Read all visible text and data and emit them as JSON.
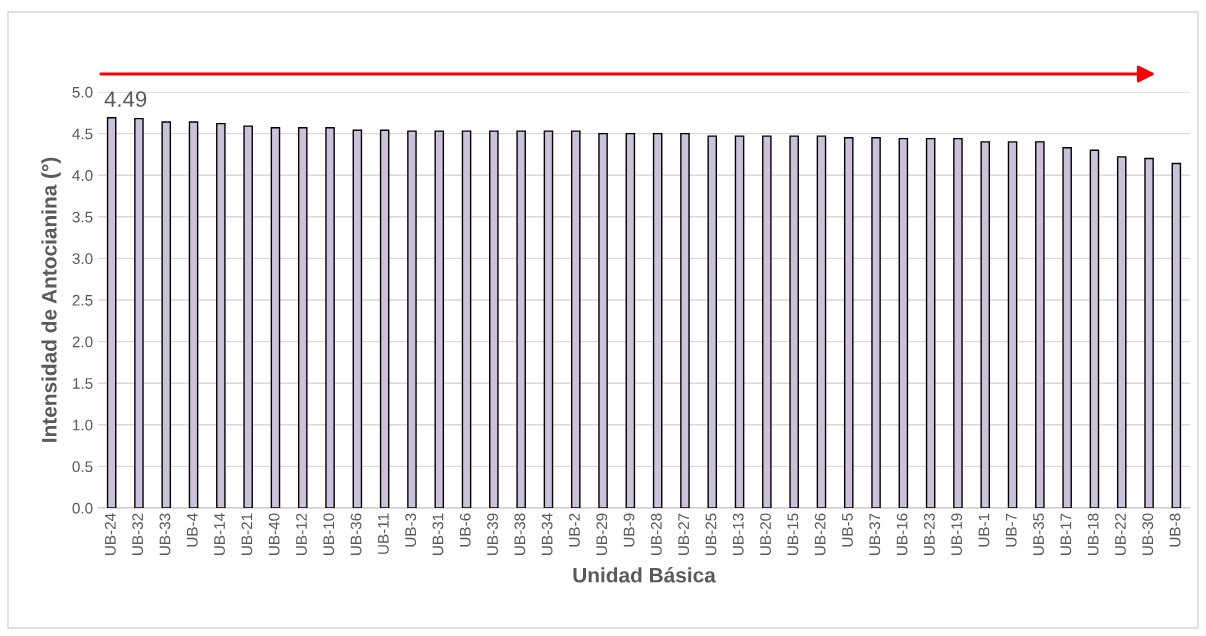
{
  "chart_data": {
    "type": "bar",
    "xlabel": "Unidad Básica",
    "ylabel": "Intensidad de Antocianina (°)",
    "categories": [
      "UB-24",
      "UB-32",
      "UB-33",
      "UB-4",
      "UB-14",
      "UB-21",
      "UB-40",
      "UB-12",
      "UB-10",
      "UB-36",
      "UB-11",
      "UB-3",
      "UB-31",
      "UB-6",
      "UB-39",
      "UB-38",
      "UB-34",
      "UB-2",
      "UB-29",
      "UB-9",
      "UB-28",
      "UB-27",
      "UB-25",
      "UB-13",
      "UB-20",
      "UB-15",
      "UB-26",
      "UB-5",
      "UB-37",
      "UB-16",
      "UB-23",
      "UB-19",
      "UB-1",
      "UB-7",
      "UB-35",
      "UB-17",
      "UB-18",
      "UB-22",
      "UB-30",
      "UB-8"
    ],
    "series": [
      {
        "color": "#ccc1da",
        "values": [
          4.69,
          4.68,
          4.64,
          4.64,
          4.62,
          4.59,
          4.57,
          4.57,
          4.57,
          4.54,
          4.54,
          4.53,
          4.53,
          4.53,
          4.53,
          4.53,
          4.53,
          4.53,
          4.5,
          4.5,
          4.5,
          4.5,
          4.47,
          4.47,
          4.47,
          4.47,
          4.47,
          4.45,
          4.45,
          4.44,
          4.44,
          4.44,
          4.4,
          4.4,
          4.4,
          4.33,
          4.3,
          4.22,
          4.2,
          4.14
        ]
      }
    ],
    "ylim": [
      0,
      5
    ],
    "yticks": [
      {
        "value": 0,
        "label": "0.0"
      },
      {
        "value": 0.5,
        "label": "0.5"
      },
      {
        "value": 1,
        "label": "1.0"
      },
      {
        "value": 1.5,
        "label": "1.5"
      },
      {
        "value": 2,
        "label": "2.0"
      },
      {
        "value": 2.5,
        "label": "2.5"
      },
      {
        "value": 3,
        "label": "3.0"
      },
      {
        "value": 3.5,
        "label": "3.5"
      },
      {
        "value": 4,
        "label": "4.0"
      },
      {
        "value": 4.5,
        "label": "4.5"
      },
      {
        "value": 5,
        "label": "5.0"
      }
    ],
    "grid": "y",
    "legend": false,
    "annotations": [
      "4.49"
    ]
  }
}
